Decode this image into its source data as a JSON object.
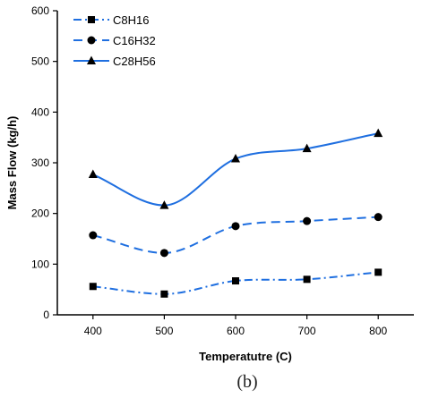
{
  "chart_data": {
    "type": "line",
    "title": "",
    "xlabel": "Temperatutre (C)",
    "ylabel": "Mass Flow (kg/h)",
    "x": [
      400,
      500,
      600,
      700,
      800
    ],
    "xlim": [
      350,
      850
    ],
    "ylim": [
      0,
      600
    ],
    "xticks": [
      400,
      500,
      600,
      700,
      800
    ],
    "yticks": [
      0,
      100,
      200,
      300,
      400,
      500,
      600
    ],
    "grid": false,
    "legend_position": "top-left",
    "line_color": "#1f6fe0",
    "series": [
      {
        "name": "C8H16",
        "values": [
          56,
          41,
          67,
          70,
          84
        ],
        "marker": "square",
        "line_style": "dash-dot"
      },
      {
        "name": "C16H32",
        "values": [
          157,
          122,
          175,
          185,
          193
        ],
        "marker": "circle",
        "line_style": "dashed"
      },
      {
        "name": "C28H56",
        "values": [
          277,
          216,
          308,
          328,
          358
        ],
        "marker": "triangle",
        "line_style": "solid"
      }
    ],
    "caption": "(b)"
  }
}
